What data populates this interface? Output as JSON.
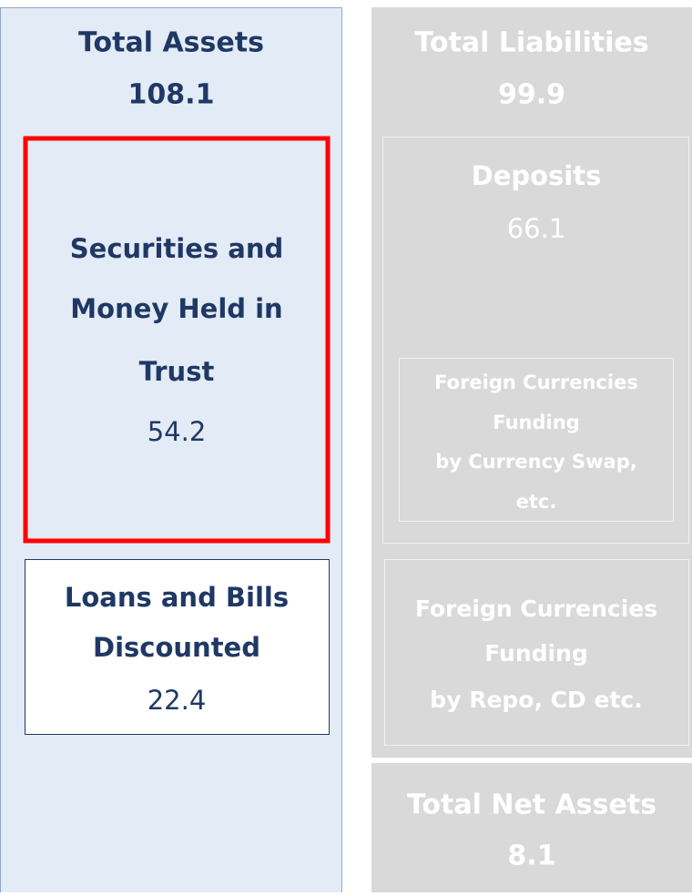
{
  "assets": {
    "title": "Total Assets",
    "value": 108.1,
    "securities": {
      "label": [
        "Securities and",
        "Money Held in",
        "Trust"
      ],
      "value": 54.2
    },
    "loans": {
      "label": [
        "Loans and Bills",
        "Discounted"
      ],
      "value": 22.4
    }
  },
  "liabilities": {
    "title": "Total Liabilities",
    "value": 99.9,
    "deposits": {
      "label": "Deposits",
      "value": 66.1,
      "swap": {
        "label": [
          "Foreign Currencies",
          "Funding",
          "by Currency Swap,",
          "etc."
        ]
      }
    },
    "repo": {
      "label": [
        "Foreign Currencies",
        "Funding",
        "by Repo, CD etc."
      ]
    }
  },
  "net_assets": {
    "title": "Total Net Assets",
    "value": 8.1
  }
}
